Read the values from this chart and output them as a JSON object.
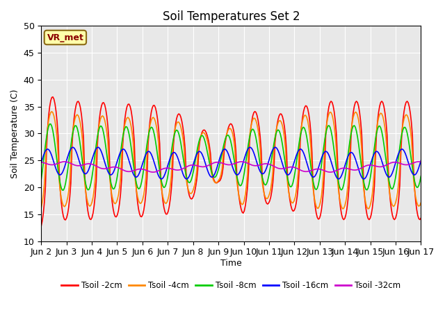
{
  "title": "Soil Temperatures Set 2",
  "xlabel": "Time",
  "ylabel": "Soil Temperature (C)",
  "ylim": [
    10,
    50
  ],
  "xlim": [
    0,
    15
  ],
  "x_tick_labels": [
    "Jun 2",
    "Jun 3",
    "Jun 4",
    "Jun 5",
    "Jun 6",
    "Jun 7",
    "Jun 8",
    "Jun 9",
    "Jun 10",
    "Jun 11",
    "Jun 12",
    "Jun 13",
    "Jun 14",
    "Jun 15",
    "Jun 16",
    "Jun 17"
  ],
  "annotation_text": "VR_met",
  "bg_color": "#e8e8e8",
  "series": {
    "Tsoil -2cm": {
      "color": "#ff0000",
      "linewidth": 1.2
    },
    "Tsoil -4cm": {
      "color": "#ff8800",
      "linewidth": 1.2
    },
    "Tsoil -8cm": {
      "color": "#00cc00",
      "linewidth": 1.2
    },
    "Tsoil -16cm": {
      "color": "#0000ff",
      "linewidth": 1.2
    },
    "Tsoil -32cm": {
      "color": "#cc00cc",
      "linewidth": 1.2
    }
  }
}
